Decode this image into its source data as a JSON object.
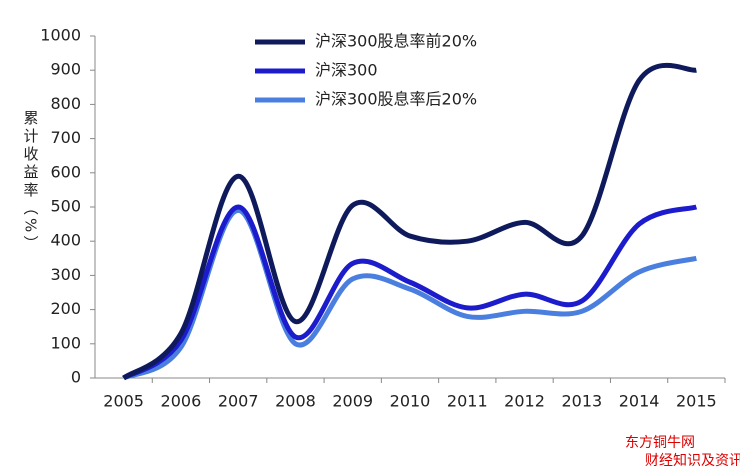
{
  "chart_data": {
    "type": "line",
    "y_label": "累计收益率（%）",
    "categories": [
      "2005",
      "2006",
      "2007",
      "2008",
      "2009",
      "2010",
      "2011",
      "2012",
      "2013",
      "2014",
      "2015"
    ],
    "series": [
      {
        "name": "沪深300股息率前20%",
        "color": "#0f1a5c",
        "values": [
          0,
          130,
          590,
          165,
          505,
          415,
          400,
          455,
          415,
          870,
          900
        ]
      },
      {
        "name": "沪深300",
        "color": "#1c1ccc",
        "values": [
          0,
          110,
          500,
          120,
          335,
          280,
          205,
          245,
          225,
          450,
          500
        ]
      },
      {
        "name": "沪深300股息率后20%",
        "color": "#4a7fe0",
        "values": [
          0,
          90,
          490,
          100,
          290,
          260,
          180,
          195,
          195,
          310,
          350
        ]
      }
    ],
    "ylim": [
      0,
      1000
    ],
    "yticks": [
      0,
      100,
      200,
      300,
      400,
      500,
      600,
      700,
      800,
      900,
      1000
    ],
    "legend": "top",
    "annotations": [
      "东方铜牛网",
      "财经知识及资讯"
    ]
  }
}
